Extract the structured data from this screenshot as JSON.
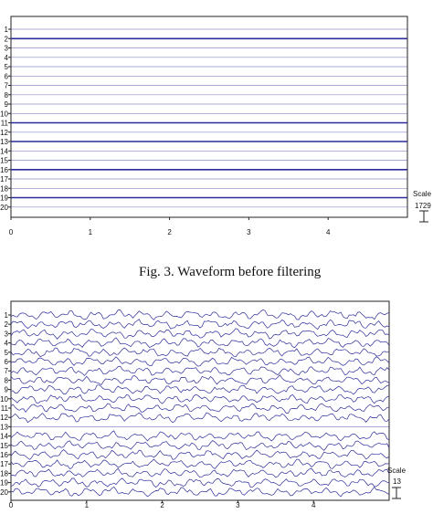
{
  "header_fragment": "",
  "chart_data": [
    {
      "type": "line",
      "title": "",
      "xlabel": "",
      "ylabel": "",
      "x_ticks": [
        "0",
        "1",
        "2",
        "3",
        "4"
      ],
      "xlim": [
        0,
        5
      ],
      "channels": [
        "1",
        "2",
        "3",
        "4",
        "5",
        "6",
        "7",
        "8",
        "9",
        "10",
        "11",
        "12",
        "13",
        "14",
        "15",
        "16",
        "17",
        "18",
        "19",
        "20"
      ],
      "flat_channels": [
        "1",
        "2",
        "3",
        "4",
        "5",
        "6",
        "7",
        "8",
        "9",
        "10",
        "11",
        "12",
        "13",
        "14",
        "15",
        "16",
        "17",
        "18",
        "19",
        "20"
      ],
      "bold_channels": [
        "2",
        "11",
        "13",
        "16",
        "19"
      ],
      "grid": false,
      "scale_label": "Scale",
      "scale_value": "1729",
      "caption": "Fig. 3.  Waveform before filtering"
    },
    {
      "type": "line",
      "title": "",
      "xlabel": "",
      "ylabel": "",
      "x_ticks": [
        "0",
        "1",
        "2",
        "3",
        "4"
      ],
      "xlim": [
        0,
        5
      ],
      "channels": [
        "1",
        "2",
        "3",
        "4",
        "5",
        "6",
        "7",
        "8",
        "9",
        "10",
        "11",
        "12",
        "13",
        "14",
        "15",
        "16",
        "17",
        "18",
        "19",
        "20"
      ],
      "flat_channels": [
        "13"
      ],
      "grid": false,
      "scale_label": "Scale",
      "scale_value": "13"
    }
  ],
  "colors": {
    "trace": "#2b2b9a",
    "axis": "#222222",
    "background": "#ffffff"
  }
}
